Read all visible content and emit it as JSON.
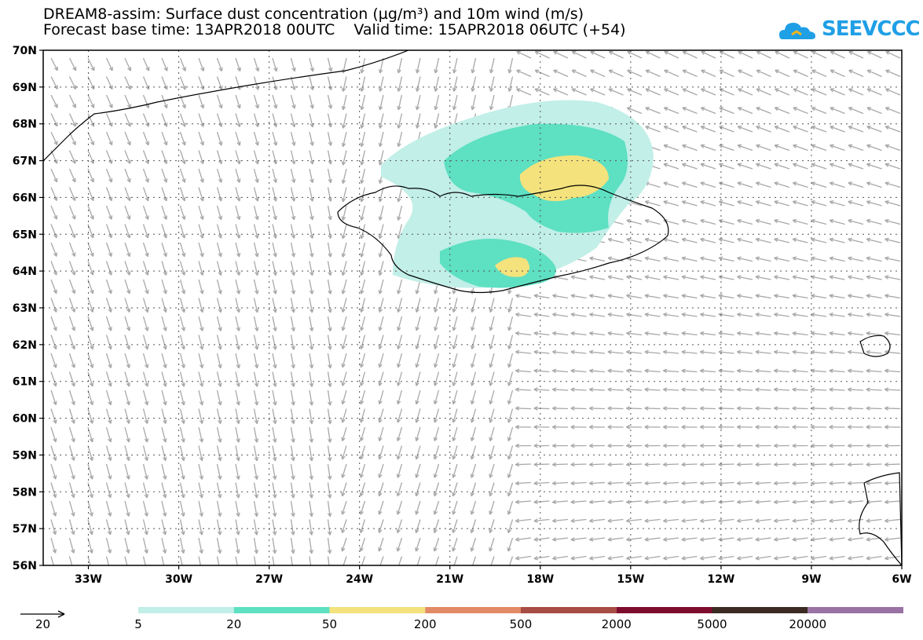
{
  "header": {
    "title_line1": "DREAM8-assim: Surface dust concentration (µg/m³) and 10m wind (m/s)",
    "title_line2": "Forecast base time: 13APR2018 00UTC    Valid time: 15APR2018 06UTC (+54)"
  },
  "logo": {
    "text": "SEEVCCC",
    "color": "#1f9fe6",
    "icon": "cloud-icon"
  },
  "map": {
    "lon_range": [
      -34.5,
      -6
    ],
    "lat_range": [
      56,
      70
    ],
    "lat_ticks": [
      "70N",
      "69N",
      "68N",
      "67N",
      "66N",
      "65N",
      "64N",
      "63N",
      "62N",
      "61N",
      "60N",
      "59N",
      "58N",
      "57N",
      "56N"
    ],
    "lon_ticks": [
      "33W",
      "30W",
      "27W",
      "24W",
      "21W",
      "18W",
      "15W",
      "12W",
      "9W",
      "6W"
    ],
    "grid": "dotted",
    "arrow_color": "#a8a8a8"
  },
  "legend": {
    "wind_ref_label": "20",
    "colors": [
      "#c2efe8",
      "#5ee0c2",
      "#f4e27c",
      "#e28a66",
      "#a74d43",
      "#7e0c2d",
      "#3b2b22",
      "#9a72a4"
    ],
    "labels": [
      "5",
      "20",
      "50",
      "200",
      "500",
      "2000",
      "5000",
      "20000"
    ]
  },
  "chart_data": {
    "type": "heatmap",
    "variable": "Surface dust concentration (µg/m³)",
    "levels": [
      5,
      20,
      50,
      200,
      500,
      2000,
      5000,
      20000
    ],
    "observed_max_level": "50-200",
    "dust_region_center": {
      "lon": -17.0,
      "lat": 66.0
    },
    "wind_unit": "m/s",
    "wind_reference": 20
  }
}
